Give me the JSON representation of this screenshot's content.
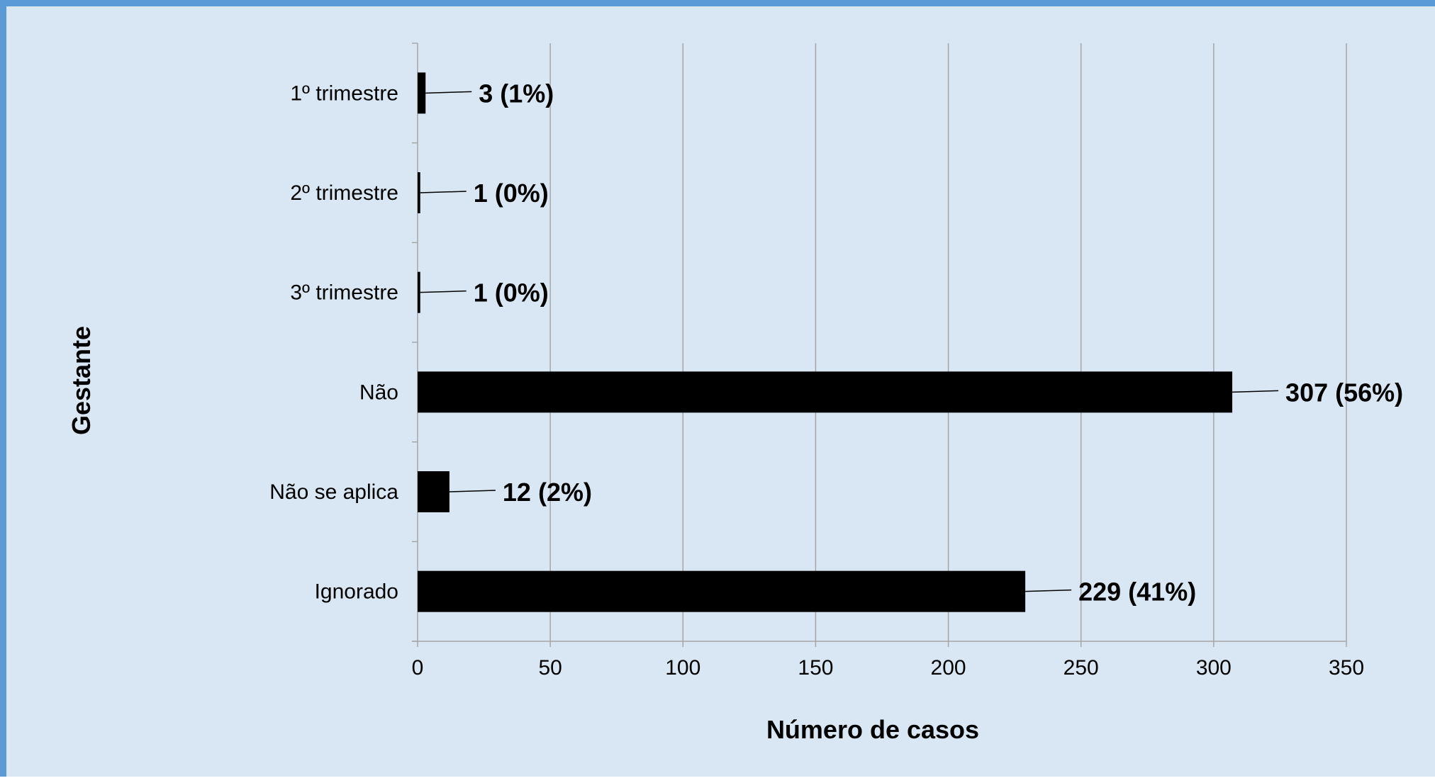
{
  "chart_data": {
    "type": "bar",
    "orientation": "horizontal",
    "categories": [
      "1º trimestre",
      "2º trimestre",
      "3º trimestre",
      "Não",
      "Não se aplica",
      "Ignorado"
    ],
    "values": [
      3,
      1,
      1,
      307,
      12,
      229
    ],
    "data_labels": [
      "3 (1%)",
      "1 (0%)",
      "1 (0%)",
      "307 (56%)",
      "12 (2%)",
      "229 (41%)"
    ],
    "xlabel": "Número de casos",
    "ylabel": "Gestante",
    "xlim": [
      0,
      350
    ],
    "x_ticks": [
      0,
      50,
      100,
      150,
      200,
      250,
      300,
      350
    ],
    "grid": "vertical",
    "legend": "none",
    "colors": {
      "bar": "#000000",
      "background": "#d9e7f5",
      "border": "#5b9bd5",
      "gridline": "#a6a6a6"
    }
  }
}
